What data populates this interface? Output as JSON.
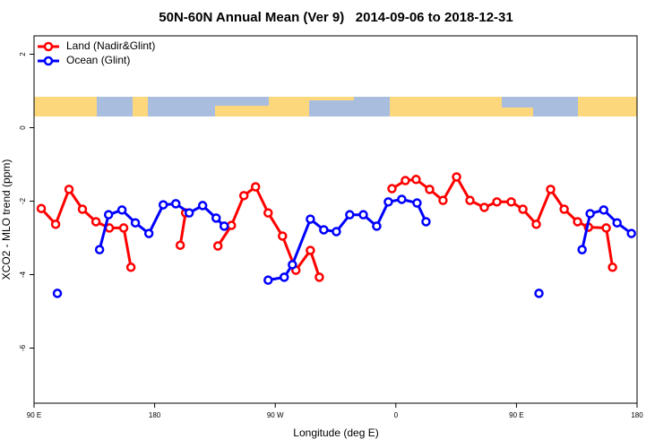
{
  "chart_data": {
    "type": "line",
    "title": "50N-60N Annual Mean (Ver 9)   2014-09-06 to 2018-12-31",
    "x_label": "Longitude (deg E)",
    "y_label": "XCO2 - MLO trend (ppm)",
    "xlim": [
      90,
      540
    ],
    "ylim": [
      -7.5,
      2.5
    ],
    "xticks": [
      {
        "value": 90,
        "label": "90 E"
      },
      {
        "value": 180,
        "label": "180"
      },
      {
        "value": 270,
        "label": "90 W"
      },
      {
        "value": 360,
        "label": "0"
      },
      {
        "value": 450,
        "label": "90 E"
      },
      {
        "value": 540,
        "label": "180"
      }
    ],
    "yticks": [
      2,
      0,
      -2,
      -4,
      -6
    ],
    "legend": "top-left",
    "series": [
      {
        "name": "Land (Nadir&Glint)",
        "color": "#ff0000",
        "x": [
          95.4,
          106.1,
          116.1,
          126.1,
          136.2,
          146.2,
          156.9,
          162.3,
          null,
          199.1,
          203.1,
          null,
          227.2,
          237.3,
          246.6,
          255.3,
          264.7,
          275.4,
          285.4,
          296.2,
          302.9,
          null,
          357.1,
          367.1,
          375.1,
          385.2,
          395.2,
          405.3,
          415.3,
          426.0,
          435.4,
          446.1,
          454.8,
          464.8,
          475.5,
          485.6,
          495.6,
          503.7,
          517.0,
          521.7
        ],
        "values": [
          -2.2,
          -2.63,
          -1.68,
          -2.22,
          -2.56,
          -2.73,
          -2.73,
          -3.8,
          null,
          -3.2,
          -2.32,
          null,
          -3.22,
          -2.66,
          -1.85,
          -1.61,
          -2.32,
          -2.95,
          -3.88,
          -3.34,
          -4.07,
          null,
          -1.66,
          -1.44,
          -1.41,
          -1.68,
          -1.98,
          -1.34,
          -1.98,
          -2.17,
          -2.02,
          -2.02,
          -2.22,
          -2.63,
          -1.68,
          -2.22,
          -2.56,
          -2.71,
          -2.73,
          -3.8
        ]
      },
      {
        "name": "Ocean (Glint)",
        "color": "#0000ff",
        "x": [
          107.4,
          null,
          138.9,
          145.6,
          155.6,
          165.6,
          175.7,
          186.4,
          195.8,
          205.8,
          215.8,
          225.9,
          231.9,
          null,
          264.7,
          276.7,
          282.8,
          296.2,
          306.2,
          315.6,
          325.6,
          335.7,
          345.7,
          354.4,
          364.4,
          375.8,
          382.5,
          null,
          466.8,
          null,
          499.0,
          505.0,
          515.1,
          525.1,
          535.8
        ],
        "values": [
          -4.51,
          null,
          -3.32,
          -2.37,
          -2.24,
          -2.59,
          -2.88,
          -2.1,
          -2.07,
          -2.32,
          -2.12,
          -2.46,
          -2.68,
          null,
          -4.15,
          -4.07,
          -3.73,
          -2.49,
          -2.78,
          -2.83,
          -2.37,
          -2.37,
          -2.68,
          -2.02,
          -1.95,
          -2.05,
          -2.56,
          null,
          -4.51,
          null,
          -3.32,
          -2.34,
          -2.24,
          -2.59,
          -2.88
        ]
      }
    ]
  }
}
